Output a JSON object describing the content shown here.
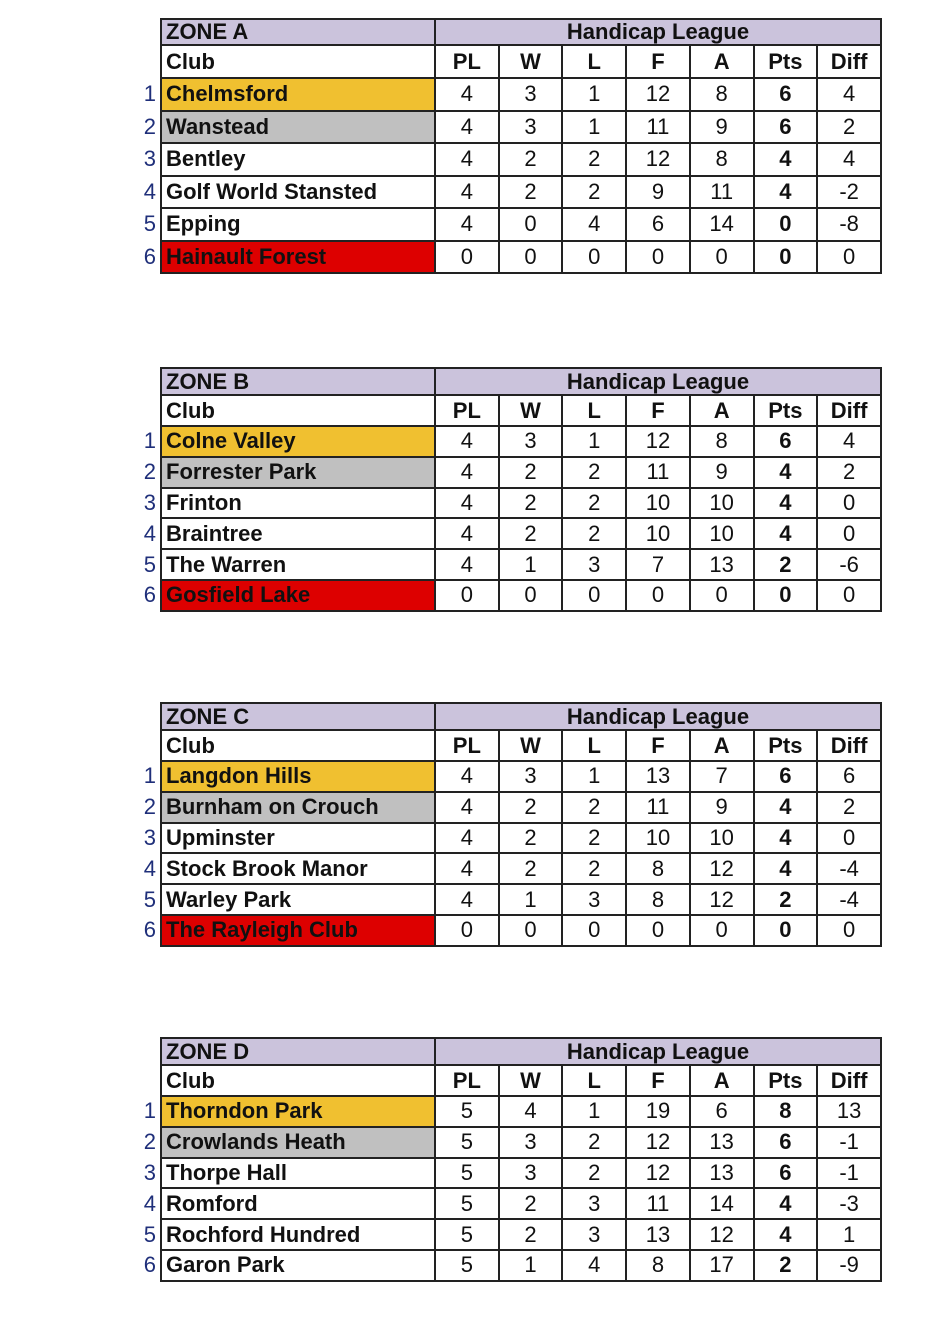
{
  "colors": {
    "first": "#f0c030",
    "second": "#c0c0c0",
    "withdrawn": "#dd0000",
    "header": "#cbc3dc",
    "rank": "#1f2f7a"
  },
  "columns": [
    "Club",
    "PL",
    "W",
    "L",
    "F",
    "A",
    "Pts",
    "Diff"
  ],
  "league_title": "Handicap League",
  "zones": [
    {
      "name": "ZONE A",
      "rows": [
        {
          "rank": "1",
          "club": "Chelmsford",
          "highlight": "first",
          "stats": [
            "4",
            "3",
            "1",
            "12",
            "8",
            "6",
            "4"
          ]
        },
        {
          "rank": "2",
          "club": "Wanstead",
          "highlight": "second",
          "stats": [
            "4",
            "3",
            "1",
            "11",
            "9",
            "6",
            "2"
          ]
        },
        {
          "rank": "3",
          "club": "Bentley",
          "highlight": "",
          "stats": [
            "4",
            "2",
            "2",
            "12",
            "8",
            "4",
            "4"
          ]
        },
        {
          "rank": "4",
          "club": "Golf World Stansted",
          "highlight": "",
          "stats": [
            "4",
            "2",
            "2",
            "9",
            "11",
            "4",
            "-2"
          ]
        },
        {
          "rank": "5",
          "club": "Epping",
          "highlight": "",
          "stats": [
            "4",
            "0",
            "4",
            "6",
            "14",
            "0",
            "-8"
          ]
        },
        {
          "rank": "6",
          "club": "Hainault Forest",
          "highlight": "withdrawn",
          "stats": [
            "0",
            "0",
            "0",
            "0",
            "0",
            "0",
            "0"
          ]
        }
      ]
    },
    {
      "name": "ZONE B",
      "rows": [
        {
          "rank": "1",
          "club": "Colne Valley",
          "highlight": "first",
          "stats": [
            "4",
            "3",
            "1",
            "12",
            "8",
            "6",
            "4"
          ]
        },
        {
          "rank": "2",
          "club": "Forrester Park",
          "highlight": "second",
          "stats": [
            "4",
            "2",
            "2",
            "11",
            "9",
            "4",
            "2"
          ]
        },
        {
          "rank": "3",
          "club": "Frinton",
          "highlight": "",
          "stats": [
            "4",
            "2",
            "2",
            "10",
            "10",
            "4",
            "0"
          ]
        },
        {
          "rank": "4",
          "club": "Braintree",
          "highlight": "",
          "stats": [
            "4",
            "2",
            "2",
            "10",
            "10",
            "4",
            "0"
          ]
        },
        {
          "rank": "5",
          "club": "The Warren",
          "highlight": "",
          "stats": [
            "4",
            "1",
            "3",
            "7",
            "13",
            "2",
            "-6"
          ]
        },
        {
          "rank": "6",
          "club": "Gosfield Lake",
          "highlight": "withdrawn",
          "stats": [
            "0",
            "0",
            "0",
            "0",
            "0",
            "0",
            "0"
          ]
        }
      ]
    },
    {
      "name": "ZONE C",
      "rows": [
        {
          "rank": "1",
          "club": "Langdon Hills",
          "highlight": "first",
          "stats": [
            "4",
            "3",
            "1",
            "13",
            "7",
            "6",
            "6"
          ]
        },
        {
          "rank": "2",
          "club": "Burnham on Crouch",
          "highlight": "second",
          "stats": [
            "4",
            "2",
            "2",
            "11",
            "9",
            "4",
            "2"
          ]
        },
        {
          "rank": "3",
          "club": "Upminster",
          "highlight": "",
          "stats": [
            "4",
            "2",
            "2",
            "10",
            "10",
            "4",
            "0"
          ]
        },
        {
          "rank": "4",
          "club": "Stock Brook Manor",
          "highlight": "",
          "stats": [
            "4",
            "2",
            "2",
            "8",
            "12",
            "4",
            "-4"
          ]
        },
        {
          "rank": "5",
          "club": "Warley Park",
          "highlight": "",
          "stats": [
            "4",
            "1",
            "3",
            "8",
            "12",
            "2",
            "-4"
          ]
        },
        {
          "rank": "6",
          "club": "The Rayleigh Club",
          "highlight": "withdrawn",
          "stats": [
            "0",
            "0",
            "0",
            "0",
            "0",
            "0",
            "0"
          ]
        }
      ]
    },
    {
      "name": "ZONE D",
      "rows": [
        {
          "rank": "1",
          "club": "Thorndon Park",
          "highlight": "first",
          "stats": [
            "5",
            "4",
            "1",
            "19",
            "6",
            "8",
            "13"
          ]
        },
        {
          "rank": "2",
          "club": "Crowlands Heath",
          "highlight": "second",
          "stats": [
            "5",
            "3",
            "2",
            "12",
            "13",
            "6",
            "-1"
          ]
        },
        {
          "rank": "3",
          "club": "Thorpe Hall",
          "highlight": "",
          "stats": [
            "5",
            "3",
            "2",
            "12",
            "13",
            "6",
            "-1"
          ]
        },
        {
          "rank": "4",
          "club": "Romford",
          "highlight": "",
          "stats": [
            "5",
            "2",
            "3",
            "11",
            "14",
            "4",
            "-3"
          ]
        },
        {
          "rank": "5",
          "club": "Rochford Hundred",
          "highlight": "",
          "stats": [
            "5",
            "2",
            "3",
            "13",
            "12",
            "4",
            "1"
          ]
        },
        {
          "rank": "6",
          "club": "Garon Park",
          "highlight": "",
          "stats": [
            "5",
            "1",
            "4",
            "8",
            "17",
            "2",
            "-9"
          ]
        }
      ]
    }
  ]
}
